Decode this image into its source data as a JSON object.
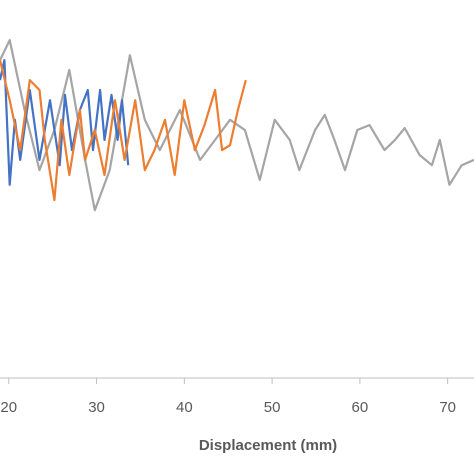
{
  "chart_data": {
    "type": "line",
    "x_label": "Displacement (mm)",
    "xlim": [
      19,
      73
    ],
    "xticks": [
      20,
      30,
      40,
      50,
      60,
      70
    ],
    "ylim": [
      0,
      100
    ],
    "grid": false,
    "series": [
      {
        "color": "#a5a5a5",
        "x": [
          19.0,
          20.1,
          21.8,
          23.5,
          25.2,
          26.9,
          28.7,
          29.8,
          31.5,
          33.8,
          35.5,
          37.2,
          39.5,
          41.8,
          43.5,
          45.2,
          46.9,
          48.6,
          50.3,
          52.0,
          53.1,
          54.9,
          56.0,
          57.1,
          58.3,
          59.7,
          61.1,
          62.8,
          64.0,
          65.1,
          66.8,
          68.2,
          69.1,
          70.2,
          71.6,
          73.0
        ],
        "values": [
          84.1,
          89.4,
          70.9,
          55.0,
          65.6,
          81.5,
          57.7,
          44.4,
          55.0,
          85.4,
          68.3,
          60.3,
          70.9,
          57.7,
          63.0,
          68.3,
          65.6,
          52.4,
          68.3,
          63.0,
          55.0,
          65.6,
          69.6,
          63.0,
          55.0,
          65.6,
          66.9,
          60.3,
          63.0,
          66.1,
          59.0,
          56.3,
          63.0,
          51.1,
          56.3,
          57.7
        ]
      },
      {
        "color": "#4472c4",
        "x": [
          19.0,
          19.5,
          20.1,
          20.7,
          21.3,
          22.4,
          23.5,
          24.7,
          25.8,
          26.4,
          27.2,
          28.1,
          29.0,
          29.6,
          30.4,
          30.9,
          31.7,
          32.4,
          32.9,
          33.6
        ],
        "values": [
          78.8,
          84.1,
          51.1,
          68.3,
          57.7,
          76.2,
          57.7,
          73.5,
          56.3,
          74.9,
          60.3,
          70.9,
          76.2,
          60.3,
          76.2,
          63.0,
          74.9,
          63.0,
          73.5,
          56.3
        ]
      },
      {
        "color": "#ed7d31",
        "x": [
          19.0,
          20.1,
          21.3,
          22.4,
          23.5,
          24.1,
          25.2,
          26.0,
          26.9,
          28.1,
          28.7,
          29.8,
          30.9,
          32.1,
          33.2,
          34.4,
          35.5,
          36.6,
          37.8,
          38.9,
          40.0,
          41.2,
          42.3,
          43.5,
          44.3,
          45.2,
          46.1,
          47.0
        ],
        "values": [
          84.1,
          73.5,
          60.3,
          78.8,
          76.2,
          63.0,
          47.1,
          68.3,
          53.7,
          70.9,
          57.7,
          65.6,
          53.7,
          73.5,
          57.7,
          73.5,
          55.0,
          60.3,
          68.3,
          53.7,
          73.5,
          60.3,
          66.9,
          76.2,
          60.3,
          61.6,
          70.9,
          78.8
        ]
      }
    ]
  }
}
